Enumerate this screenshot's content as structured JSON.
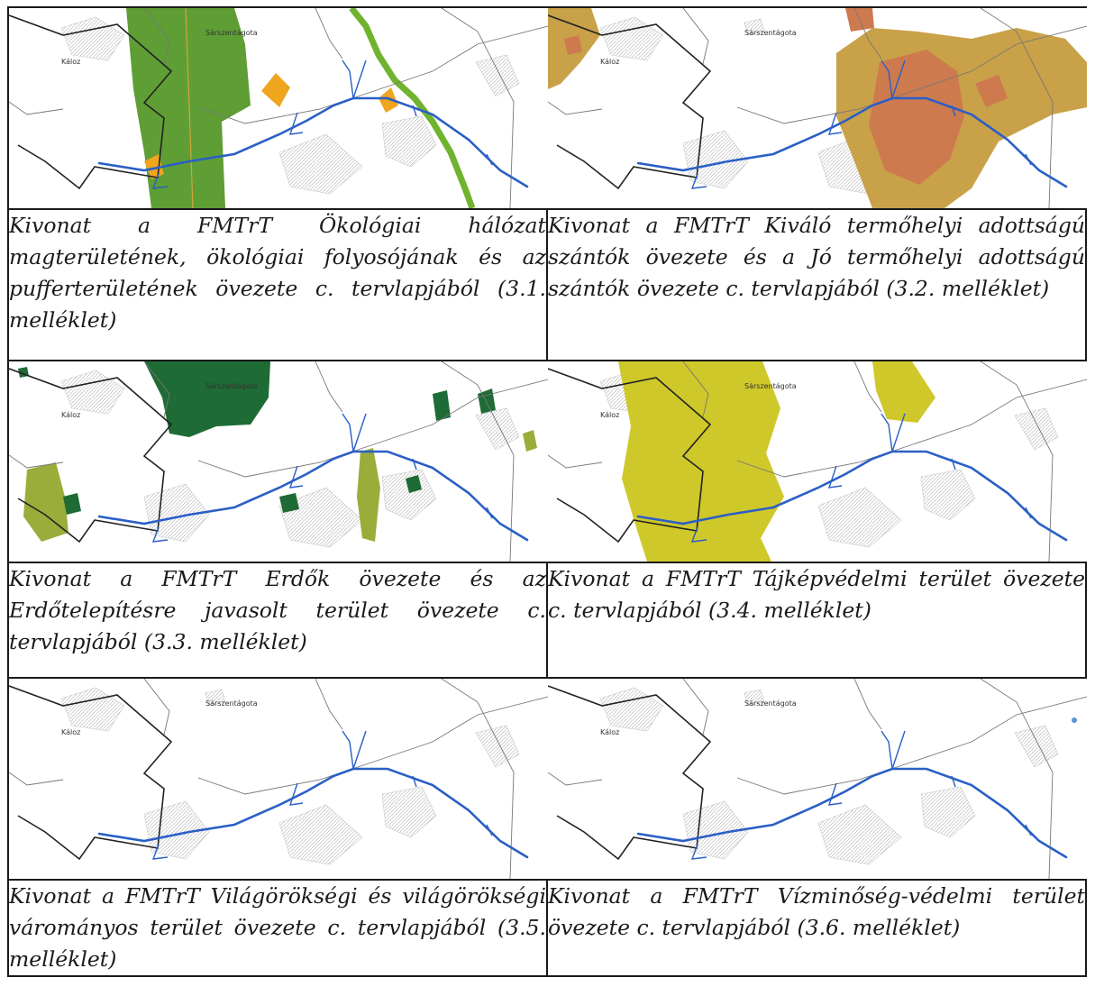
{
  "header_fragment": "",
  "place_labels": {
    "town_a": "Sárszentágota",
    "town_b": "Káloz"
  },
  "colors": {
    "road": "#2a5fc6",
    "ecological_core": "#5e9e35",
    "ecological_buffer": "#f0a51e",
    "ecological_corridor": "#6fb32e",
    "soil_excellent": "#cd7a4f",
    "soil_good": "#c9a148",
    "forest": "#1e6b35",
    "afforestation": "#9aad3a",
    "landscape": "#cfc82a",
    "water_point": "#5f8fd6",
    "hatch": "#bdbdbd",
    "boundary": "#222222"
  },
  "cells": [
    {
      "map": "ecological-network-map",
      "caption": "Kivonat a FMTrT Ökológiai hálózat magterületének, ökológiai folyosójának és az pufferterületének övezete c. tervlapjából (3.1. melléklet)"
    },
    {
      "map": "arable-land-map",
      "caption": "Kivonat a FMTrT Kiváló termőhelyi adottságú szántók övezete és a Jó termőhelyi adottságú szántók övezete c. tervlapjából (3.2. melléklet)"
    },
    {
      "map": "forest-zone-map",
      "caption": "Kivonat a FMTrT Erdők övezete és az Erdőtelepítésre javasolt terület övezete c. tervlapjából (3.3. melléklet)"
    },
    {
      "map": "landscape-protection-map",
      "caption": "Kivonat a FMTrT Tájképvédelmi terület övezete c. tervlapjából (3.4. melléklet)"
    },
    {
      "map": "world-heritage-map",
      "caption": "Kivonat a FMTrT Világörökségi és világörökségi várományos terület övezete c. tervlapjából (3.5. melléklet)"
    },
    {
      "map": "water-protection-map",
      "caption": "Kivonat a FMTrT Vízminőség-védelmi terület övezete c. tervlapjából (3.6. melléklet)"
    }
  ]
}
